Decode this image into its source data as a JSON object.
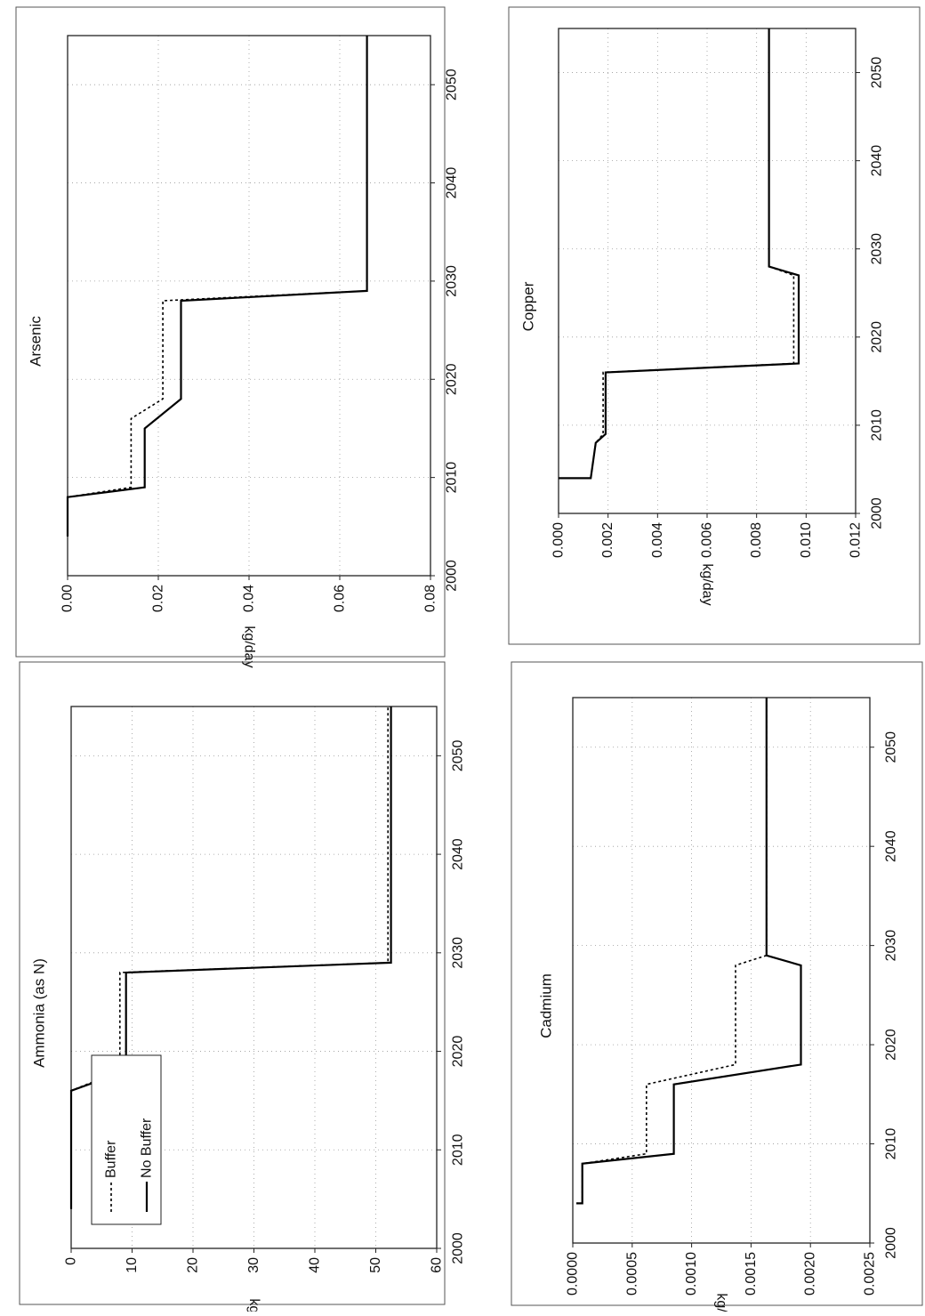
{
  "chart_data": [
    {
      "type": "line",
      "title": "Arsenic",
      "ylabel": "kg/day",
      "xlabel": "",
      "xlim": [
        2000,
        2055
      ],
      "ylim": [
        0,
        0.08
      ],
      "x_ticks": [
        "2000",
        "2010",
        "2020",
        "2030",
        "2040",
        "2050"
      ],
      "y_ticks": [
        "0.00",
        "0.02",
        "0.04",
        "0.06",
        "0.08"
      ],
      "grid": true,
      "series": [
        {
          "name": "Buffer",
          "style": "dashed",
          "x": [
            2004,
            2008,
            2009,
            2016,
            2018,
            2028,
            2029,
            2055
          ],
          "y": [
            0.0,
            0.0,
            0.014,
            0.014,
            0.021,
            0.021,
            0.066,
            0.066
          ]
        },
        {
          "name": "No Buffer",
          "style": "solid",
          "x": [
            2004,
            2008,
            2009,
            2015,
            2018,
            2028,
            2029,
            2055
          ],
          "y": [
            0.0,
            0.0,
            0.017,
            0.017,
            0.025,
            0.025,
            0.066,
            0.066
          ]
        }
      ]
    },
    {
      "type": "line",
      "title": "Ammonia (as N)",
      "ylabel": "kg/day",
      "xlabel": "",
      "xlim": [
        2000,
        2055
      ],
      "ylim": [
        0,
        60
      ],
      "x_ticks": [
        "2000",
        "2010",
        "2020",
        "2030",
        "2040",
        "2050"
      ],
      "y_ticks": [
        "0",
        "10",
        "20",
        "30",
        "40",
        "50",
        "60"
      ],
      "grid": true,
      "legend_position": "top-left",
      "legend": [
        "Buffer",
        "No Buffer"
      ],
      "series": [
        {
          "name": "Buffer",
          "style": "dashed",
          "x": [
            2004,
            2016,
            2018,
            2028,
            2029,
            2055
          ],
          "y": [
            0,
            0,
            8,
            8,
            52,
            52
          ]
        },
        {
          "name": "No Buffer",
          "style": "solid",
          "x": [
            2004,
            2016,
            2018,
            2028,
            2029,
            2055
          ],
          "y": [
            0,
            0,
            9,
            9,
            52.5,
            52.5
          ]
        }
      ]
    },
    {
      "type": "line",
      "title": "Copper",
      "ylabel": "kg/day",
      "xlabel": "",
      "xlim": [
        2000,
        2055
      ],
      "ylim": [
        0,
        0.012
      ],
      "x_ticks": [
        "2000",
        "2010",
        "2020",
        "2030",
        "2040",
        "2050"
      ],
      "y_ticks": [
        "0.000",
        "0.002",
        "0.004",
        "0.006",
        "0.008",
        "0.010",
        "0.012"
      ],
      "grid": true,
      "series": [
        {
          "name": "Buffer",
          "style": "dashed",
          "x": [
            2004,
            2004,
            2008,
            2009,
            2016,
            2017,
            2027,
            2028,
            2055
          ],
          "y": [
            0.0,
            0.0013,
            0.0015,
            0.0018,
            0.0018,
            0.0095,
            0.0095,
            0.0085,
            0.0085
          ]
        },
        {
          "name": "No Buffer",
          "style": "solid",
          "x": [
            2004,
            2004,
            2008,
            2009,
            2016,
            2017,
            2027,
            2028,
            2055
          ],
          "y": [
            0.0,
            0.0013,
            0.0015,
            0.0019,
            0.0019,
            0.0097,
            0.0097,
            0.0085,
            0.0085
          ]
        }
      ]
    },
    {
      "type": "line",
      "title": "Cadmium",
      "ylabel": "kg/day",
      "xlabel": "",
      "xlim": [
        2000,
        2055
      ],
      "ylim": [
        0,
        0.0025
      ],
      "x_ticks": [
        "2000",
        "2010",
        "2020",
        "2030",
        "2040",
        "2050"
      ],
      "y_ticks": [
        "0.0000",
        "0.0005",
        "0.0010",
        "0.0015",
        "0.0020",
        "0.0025"
      ],
      "grid": true,
      "series": [
        {
          "name": "Buffer",
          "style": "dashed",
          "x": [
            2004,
            2004,
            2008,
            2009,
            2016,
            2018,
            2028,
            2029,
            2055
          ],
          "y": [
            3e-05,
            8e-05,
            8e-05,
            0.00062,
            0.00062,
            0.00137,
            0.00137,
            0.00163,
            0.00163
          ]
        },
        {
          "name": "No Buffer",
          "style": "solid",
          "x": [
            2004,
            2004,
            2008,
            2009,
            2016,
            2018,
            2028,
            2029,
            2055
          ],
          "y": [
            3e-05,
            8e-05,
            8e-05,
            0.00085,
            0.00085,
            0.00192,
            0.00192,
            0.00163,
            0.00163
          ]
        }
      ]
    }
  ]
}
